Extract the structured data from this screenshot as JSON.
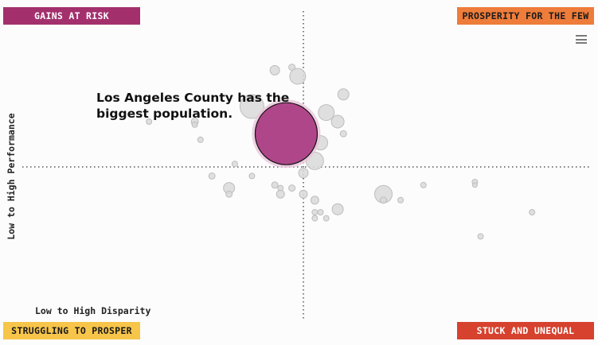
{
  "quadrants": {
    "top_left": "GAINS AT RISK",
    "top_right": "PROSPERITY FOR THE FEW",
    "bottom_left": "STRUGGLING TO PROSPER",
    "bottom_right": "STUCK AND UNEQUAL"
  },
  "colors": {
    "gains_at_risk": "#a3306d",
    "prosperity_for_the_few": "#ee7c3a",
    "struggling_to_prosper": "#f7c54a",
    "stuck_and_unequal": "#d6422e",
    "highlight": "#b0468a",
    "other_counties": "#d9d9d9"
  },
  "menu": {
    "icon": "hamburger-menu-icon"
  },
  "annotation": "Los Angeles County has the biggest population.",
  "chart_data": {
    "type": "scatter",
    "xlabel": "Low to High Disparity",
    "ylabel": "Low to High Performance",
    "xlim": [
      0,
      1
    ],
    "ylim": [
      0,
      1
    ],
    "x_divider": 0.5,
    "y_divider": 0.5,
    "highlight": {
      "name": "Los Angeles County",
      "x": 0.47,
      "y": 0.61,
      "size": 39
    },
    "points": [
      {
        "x": 0.45,
        "y": 0.82,
        "size": 6
      },
      {
        "x": 0.48,
        "y": 0.83,
        "size": 4
      },
      {
        "x": 0.49,
        "y": 0.8,
        "size": 10
      },
      {
        "x": 0.57,
        "y": 0.74,
        "size": 7
      },
      {
        "x": 0.41,
        "y": 0.7,
        "size": 15
      },
      {
        "x": 0.54,
        "y": 0.68,
        "size": 10
      },
      {
        "x": 0.56,
        "y": 0.65,
        "size": 8
      },
      {
        "x": 0.57,
        "y": 0.61,
        "size": 4
      },
      {
        "x": 0.53,
        "y": 0.58,
        "size": 9
      },
      {
        "x": 0.52,
        "y": 0.52,
        "size": 11
      },
      {
        "x": 0.23,
        "y": 0.65,
        "size": 3.5
      },
      {
        "x": 0.31,
        "y": 0.65,
        "size": 4.5
      },
      {
        "x": 0.31,
        "y": 0.64,
        "size": 3.5
      },
      {
        "x": 0.32,
        "y": 0.59,
        "size": 3.5
      },
      {
        "x": 0.38,
        "y": 0.51,
        "size": 3.5
      },
      {
        "x": 0.34,
        "y": 0.47,
        "size": 4
      },
      {
        "x": 0.41,
        "y": 0.47,
        "size": 3.5
      },
      {
        "x": 0.5,
        "y": 0.48,
        "size": 6
      },
      {
        "x": 0.37,
        "y": 0.43,
        "size": 7
      },
      {
        "x": 0.37,
        "y": 0.41,
        "size": 4
      },
      {
        "x": 0.45,
        "y": 0.44,
        "size": 4
      },
      {
        "x": 0.46,
        "y": 0.43,
        "size": 3.5
      },
      {
        "x": 0.48,
        "y": 0.43,
        "size": 4
      },
      {
        "x": 0.46,
        "y": 0.41,
        "size": 5
      },
      {
        "x": 0.5,
        "y": 0.41,
        "size": 5
      },
      {
        "x": 0.52,
        "y": 0.39,
        "size": 5
      },
      {
        "x": 0.64,
        "y": 0.41,
        "size": 11
      },
      {
        "x": 0.64,
        "y": 0.39,
        "size": 4
      },
      {
        "x": 0.67,
        "y": 0.39,
        "size": 3.5
      },
      {
        "x": 0.71,
        "y": 0.44,
        "size": 3.5
      },
      {
        "x": 0.8,
        "y": 0.45,
        "size": 3.5
      },
      {
        "x": 0.8,
        "y": 0.44,
        "size": 3
      },
      {
        "x": 0.56,
        "y": 0.36,
        "size": 7
      },
      {
        "x": 0.52,
        "y": 0.35,
        "size": 3.5
      },
      {
        "x": 0.53,
        "y": 0.35,
        "size": 3.5
      },
      {
        "x": 0.52,
        "y": 0.33,
        "size": 3.5
      },
      {
        "x": 0.54,
        "y": 0.33,
        "size": 3.5
      },
      {
        "x": 0.9,
        "y": 0.35,
        "size": 3.5
      },
      {
        "x": 0.81,
        "y": 0.27,
        "size": 3.5
      }
    ]
  }
}
